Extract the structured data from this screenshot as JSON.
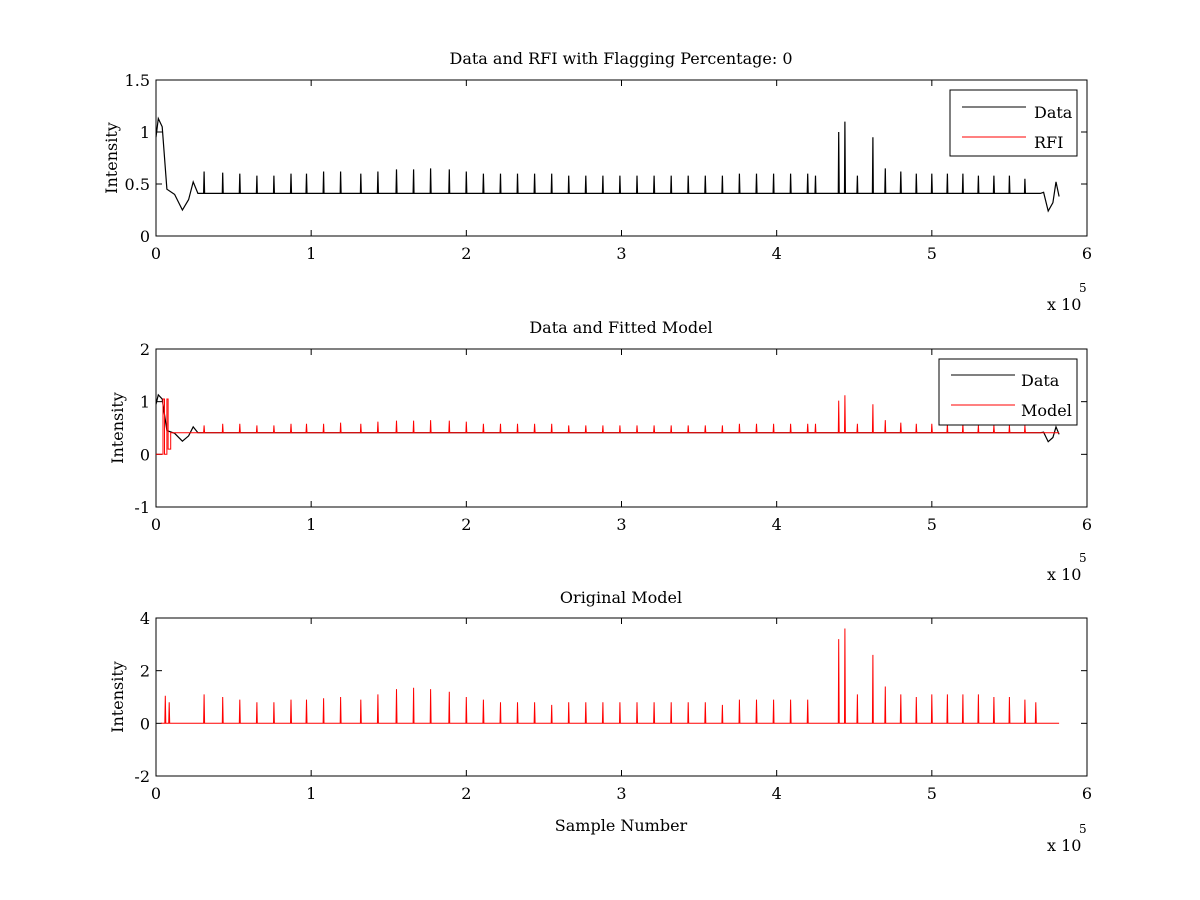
{
  "figure": {
    "background": "#ffffff",
    "axes_color": "#000000",
    "data_color": "#000000",
    "rfi_color": "#ff0000"
  },
  "chart_data": [
    {
      "type": "line",
      "title": "Data and RFI with Flagging Percentage: 0",
      "xlabel": "",
      "ylabel": "Intensity",
      "xlim": [
        0,
        600000
      ],
      "ylim": [
        0,
        1.5
      ],
      "x_ticks": [
        "0",
        "1",
        "2",
        "3",
        "4",
        "5",
        "6"
      ],
      "y_ticks": [
        "0",
        "0.5",
        "1",
        "1.5"
      ],
      "x_multiplier": "x 10",
      "x_exponent": "5",
      "grid": false,
      "legend": {
        "placement": "top-right",
        "entries": [
          "Data",
          "RFI"
        ]
      },
      "series": [
        {
          "name": "Data",
          "color": "#000000",
          "baseline": 0.41,
          "x_end": 582000,
          "features": [
            {
              "x": 0,
              "y": 0.95
            },
            {
              "x": 1500,
              "y": 1.13
            },
            {
              "x": 4000,
              "y": 1.05
            },
            {
              "x": 7000,
              "y": 0.45
            },
            {
              "x": 12000,
              "y": 0.4
            },
            {
              "x": 17000,
              "y": 0.25
            },
            {
              "x": 21000,
              "y": 0.35
            },
            {
              "x": 24000,
              "y": 0.52
            },
            {
              "x": 27000,
              "y": 0.41
            },
            {
              "x": 570000,
              "y": 0.41
            },
            {
              "x": 572000,
              "y": 0.42
            },
            {
              "x": 575000,
              "y": 0.24
            },
            {
              "x": 578000,
              "y": 0.32
            },
            {
              "x": 580000,
              "y": 0.52
            },
            {
              "x": 582000,
              "y": 0.38
            }
          ],
          "spikes": [
            {
              "x": 31000,
              "y": 0.62
            },
            {
              "x": 43000,
              "y": 0.61
            },
            {
              "x": 54000,
              "y": 0.6
            },
            {
              "x": 65000,
              "y": 0.58
            },
            {
              "x": 76000,
              "y": 0.58
            },
            {
              "x": 87000,
              "y": 0.6
            },
            {
              "x": 97000,
              "y": 0.6
            },
            {
              "x": 108000,
              "y": 0.62
            },
            {
              "x": 119000,
              "y": 0.62
            },
            {
              "x": 132000,
              "y": 0.6
            },
            {
              "x": 143000,
              "y": 0.62
            },
            {
              "x": 155000,
              "y": 0.64
            },
            {
              "x": 166000,
              "y": 0.64
            },
            {
              "x": 177000,
              "y": 0.65
            },
            {
              "x": 189000,
              "y": 0.64
            },
            {
              "x": 200000,
              "y": 0.62
            },
            {
              "x": 211000,
              "y": 0.6
            },
            {
              "x": 222000,
              "y": 0.6
            },
            {
              "x": 233000,
              "y": 0.6
            },
            {
              "x": 244000,
              "y": 0.6
            },
            {
              "x": 255000,
              "y": 0.6
            },
            {
              "x": 266000,
              "y": 0.58
            },
            {
              "x": 277000,
              "y": 0.58
            },
            {
              "x": 288000,
              "y": 0.58
            },
            {
              "x": 299000,
              "y": 0.58
            },
            {
              "x": 310000,
              "y": 0.58
            },
            {
              "x": 321000,
              "y": 0.58
            },
            {
              "x": 332000,
              "y": 0.58
            },
            {
              "x": 343000,
              "y": 0.58
            },
            {
              "x": 354000,
              "y": 0.58
            },
            {
              "x": 365000,
              "y": 0.58
            },
            {
              "x": 376000,
              "y": 0.6
            },
            {
              "x": 387000,
              "y": 0.6
            },
            {
              "x": 398000,
              "y": 0.6
            },
            {
              "x": 409000,
              "y": 0.6
            },
            {
              "x": 420000,
              "y": 0.6
            },
            {
              "x": 425000,
              "y": 0.58
            },
            {
              "x": 440000,
              "y": 1.0
            },
            {
              "x": 444000,
              "y": 1.1
            },
            {
              "x": 452000,
              "y": 0.58
            },
            {
              "x": 462000,
              "y": 0.95
            },
            {
              "x": 470000,
              "y": 0.65
            },
            {
              "x": 480000,
              "y": 0.62
            },
            {
              "x": 490000,
              "y": 0.6
            },
            {
              "x": 500000,
              "y": 0.6
            },
            {
              "x": 510000,
              "y": 0.6
            },
            {
              "x": 520000,
              "y": 0.6
            },
            {
              "x": 530000,
              "y": 0.58
            },
            {
              "x": 540000,
              "y": 0.58
            },
            {
              "x": 550000,
              "y": 0.58
            },
            {
              "x": 560000,
              "y": 0.55
            }
          ]
        },
        {
          "name": "RFI",
          "color": "#ff0000",
          "points": []
        }
      ]
    },
    {
      "type": "line",
      "title": "Data and Fitted Model",
      "xlabel": "",
      "ylabel": "Intensity",
      "xlim": [
        0,
        600000
      ],
      "ylim": [
        -1,
        2
      ],
      "x_ticks": [
        "0",
        "1",
        "2",
        "3",
        "4",
        "5",
        "6"
      ],
      "y_ticks": [
        "-1",
        "0",
        "1",
        "2"
      ],
      "x_multiplier": "x 10",
      "x_exponent": "5",
      "grid": false,
      "legend": {
        "placement": "top-right",
        "entries": [
          "Data",
          "Model"
        ]
      },
      "series": [
        {
          "name": "Data",
          "color": "#000000",
          "baseline": 0.41,
          "x_end": 582000,
          "features": [
            {
              "x": 0,
              "y": 0.95
            },
            {
              "x": 1500,
              "y": 1.13
            },
            {
              "x": 4000,
              "y": 1.05
            },
            {
              "x": 7000,
              "y": 0.45
            },
            {
              "x": 12000,
              "y": 0.4
            },
            {
              "x": 17000,
              "y": 0.25
            },
            {
              "x": 21000,
              "y": 0.35
            },
            {
              "x": 24000,
              "y": 0.52
            },
            {
              "x": 27000,
              "y": 0.41
            },
            {
              "x": 570000,
              "y": 0.41
            },
            {
              "x": 572000,
              "y": 0.42
            },
            {
              "x": 575000,
              "y": 0.24
            },
            {
              "x": 578000,
              "y": 0.32
            },
            {
              "x": 580000,
              "y": 0.52
            },
            {
              "x": 582000,
              "y": 0.38
            }
          ]
        },
        {
          "name": "Model",
          "color": "#ff0000",
          "baseline": 0.41,
          "x_end": 582000,
          "steps": [
            {
              "x": 0,
              "y": 0.0
            },
            {
              "x": 4500,
              "y": 0.0
            },
            {
              "x": 4500,
              "y": 1.05
            },
            {
              "x": 5500,
              "y": 1.05
            },
            {
              "x": 5500,
              "y": 0.0
            },
            {
              "x": 7000,
              "y": 0.0
            },
            {
              "x": 7000,
              "y": 1.05
            },
            {
              "x": 7800,
              "y": 1.05
            },
            {
              "x": 7800,
              "y": 0.1
            },
            {
              "x": 9500,
              "y": 0.1
            },
            {
              "x": 9500,
              "y": 0.41
            }
          ],
          "spikes": [
            {
              "x": 31000,
              "y": 0.55
            },
            {
              "x": 43000,
              "y": 0.58
            },
            {
              "x": 54000,
              "y": 0.58
            },
            {
              "x": 65000,
              "y": 0.55
            },
            {
              "x": 76000,
              "y": 0.55
            },
            {
              "x": 87000,
              "y": 0.58
            },
            {
              "x": 97000,
              "y": 0.58
            },
            {
              "x": 108000,
              "y": 0.58
            },
            {
              "x": 119000,
              "y": 0.6
            },
            {
              "x": 132000,
              "y": 0.58
            },
            {
              "x": 143000,
              "y": 0.62
            },
            {
              "x": 155000,
              "y": 0.64
            },
            {
              "x": 166000,
              "y": 0.64
            },
            {
              "x": 177000,
              "y": 0.65
            },
            {
              "x": 189000,
              "y": 0.64
            },
            {
              "x": 200000,
              "y": 0.62
            },
            {
              "x": 211000,
              "y": 0.58
            },
            {
              "x": 222000,
              "y": 0.58
            },
            {
              "x": 233000,
              "y": 0.58
            },
            {
              "x": 244000,
              "y": 0.58
            },
            {
              "x": 255000,
              "y": 0.58
            },
            {
              "x": 266000,
              "y": 0.55
            },
            {
              "x": 277000,
              "y": 0.55
            },
            {
              "x": 288000,
              "y": 0.55
            },
            {
              "x": 299000,
              "y": 0.55
            },
            {
              "x": 310000,
              "y": 0.55
            },
            {
              "x": 321000,
              "y": 0.55
            },
            {
              "x": 332000,
              "y": 0.55
            },
            {
              "x": 343000,
              "y": 0.55
            },
            {
              "x": 354000,
              "y": 0.55
            },
            {
              "x": 365000,
              "y": 0.55
            },
            {
              "x": 376000,
              "y": 0.58
            },
            {
              "x": 387000,
              "y": 0.58
            },
            {
              "x": 398000,
              "y": 0.58
            },
            {
              "x": 409000,
              "y": 0.58
            },
            {
              "x": 420000,
              "y": 0.58
            },
            {
              "x": 425000,
              "y": 0.58
            },
            {
              "x": 440000,
              "y": 1.02
            },
            {
              "x": 444000,
              "y": 1.12
            },
            {
              "x": 452000,
              "y": 0.58
            },
            {
              "x": 462000,
              "y": 0.95
            },
            {
              "x": 470000,
              "y": 0.65
            },
            {
              "x": 480000,
              "y": 0.6
            },
            {
              "x": 490000,
              "y": 0.58
            },
            {
              "x": 500000,
              "y": 0.58
            },
            {
              "x": 510000,
              "y": 0.58
            },
            {
              "x": 520000,
              "y": 0.58
            },
            {
              "x": 530000,
              "y": 0.55
            },
            {
              "x": 540000,
              "y": 0.55
            },
            {
              "x": 550000,
              "y": 0.55
            },
            {
              "x": 560000,
              "y": 0.55
            }
          ]
        }
      ]
    },
    {
      "type": "line",
      "title": "Original Model",
      "xlabel": "Sample Number",
      "ylabel": "Intensity",
      "xlim": [
        0,
        600000
      ],
      "ylim": [
        -2,
        4
      ],
      "x_ticks": [
        "0",
        "1",
        "2",
        "3",
        "4",
        "5",
        "6"
      ],
      "y_ticks": [
        "-2",
        "0",
        "2",
        "4"
      ],
      "x_multiplier": "x 10",
      "x_exponent": "5",
      "grid": false,
      "legend": null,
      "series": [
        {
          "color": "#ff0000",
          "baseline": 0.0,
          "x_start": 3000,
          "x_end": 582000,
          "spikes": [
            {
              "x": 6000,
              "y": 1.05
            },
            {
              "x": 8500,
              "y": 0.8
            },
            {
              "x": 31000,
              "y": 1.1
            },
            {
              "x": 43000,
              "y": 1.0
            },
            {
              "x": 54000,
              "y": 0.9
            },
            {
              "x": 65000,
              "y": 0.8
            },
            {
              "x": 76000,
              "y": 0.8
            },
            {
              "x": 87000,
              "y": 0.9
            },
            {
              "x": 97000,
              "y": 0.9
            },
            {
              "x": 108000,
              "y": 0.95
            },
            {
              "x": 119000,
              "y": 1.0
            },
            {
              "x": 132000,
              "y": 0.9
            },
            {
              "x": 143000,
              "y": 1.1
            },
            {
              "x": 155000,
              "y": 1.3
            },
            {
              "x": 166000,
              "y": 1.35
            },
            {
              "x": 177000,
              "y": 1.3
            },
            {
              "x": 189000,
              "y": 1.2
            },
            {
              "x": 200000,
              "y": 1.0
            },
            {
              "x": 211000,
              "y": 0.9
            },
            {
              "x": 222000,
              "y": 0.8
            },
            {
              "x": 233000,
              "y": 0.8
            },
            {
              "x": 244000,
              "y": 0.8
            },
            {
              "x": 255000,
              "y": 0.7
            },
            {
              "x": 266000,
              "y": 0.8
            },
            {
              "x": 277000,
              "y": 0.8
            },
            {
              "x": 288000,
              "y": 0.8
            },
            {
              "x": 299000,
              "y": 0.8
            },
            {
              "x": 310000,
              "y": 0.8
            },
            {
              "x": 321000,
              "y": 0.8
            },
            {
              "x": 332000,
              "y": 0.8
            },
            {
              "x": 343000,
              "y": 0.8
            },
            {
              "x": 354000,
              "y": 0.8
            },
            {
              "x": 365000,
              "y": 0.7
            },
            {
              "x": 376000,
              "y": 0.9
            },
            {
              "x": 387000,
              "y": 0.9
            },
            {
              "x": 398000,
              "y": 0.9
            },
            {
              "x": 409000,
              "y": 0.9
            },
            {
              "x": 420000,
              "y": 0.9
            },
            {
              "x": 440000,
              "y": 3.2
            },
            {
              "x": 444000,
              "y": 3.6
            },
            {
              "x": 452000,
              "y": 1.1
            },
            {
              "x": 462000,
              "y": 2.6
            },
            {
              "x": 470000,
              "y": 1.4
            },
            {
              "x": 480000,
              "y": 1.1
            },
            {
              "x": 490000,
              "y": 1.0
            },
            {
              "x": 500000,
              "y": 1.1
            },
            {
              "x": 510000,
              "y": 1.1
            },
            {
              "x": 520000,
              "y": 1.1
            },
            {
              "x": 530000,
              "y": 1.1
            },
            {
              "x": 540000,
              "y": 1.0
            },
            {
              "x": 550000,
              "y": 1.0
            },
            {
              "x": 560000,
              "y": 0.9
            },
            {
              "x": 567000,
              "y": 0.8
            }
          ]
        }
      ]
    }
  ]
}
